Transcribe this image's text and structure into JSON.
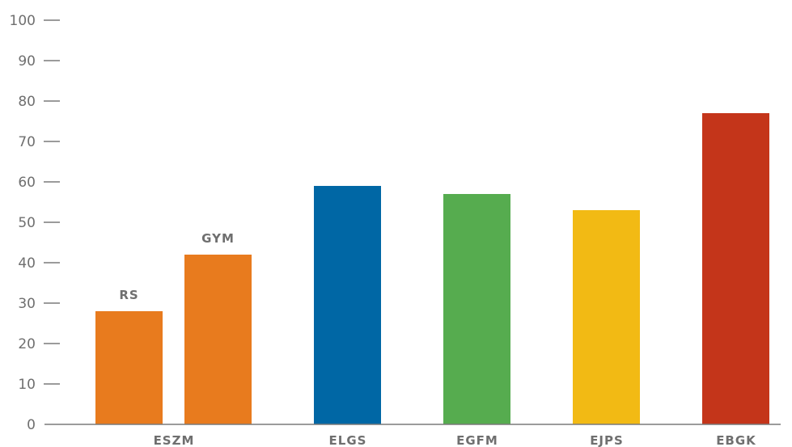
{
  "chart_data": {
    "type": "bar",
    "title": "",
    "xlabel": "",
    "ylabel": "",
    "ylim": [
      0,
      100
    ],
    "yticks": [
      0,
      10,
      20,
      30,
      40,
      50,
      60,
      70,
      80,
      90,
      100
    ],
    "grid": false,
    "legend": "none",
    "categories": [
      "ESZM",
      "ELGS",
      "EGFM",
      "EJPS",
      "EBGK"
    ],
    "bars": [
      {
        "category": "ESZM",
        "label": "RS",
        "value": 28,
        "color": "#E87B1E"
      },
      {
        "category": "ESZM",
        "label": "GYM",
        "value": 42,
        "color": "#E87B1E"
      },
      {
        "category": "ELGS",
        "label": "",
        "value": 59,
        "color": "#0067A5"
      },
      {
        "category": "EGFM",
        "label": "",
        "value": 57,
        "color": "#56AC4F"
      },
      {
        "category": "EJPS",
        "label": "",
        "value": 53,
        "color": "#F2BA14"
      },
      {
        "category": "EBGK",
        "label": "",
        "value": 77,
        "color": "#C4351A"
      }
    ],
    "axis_color": "#7a7a7a",
    "text_color": "#6f6f6f"
  }
}
